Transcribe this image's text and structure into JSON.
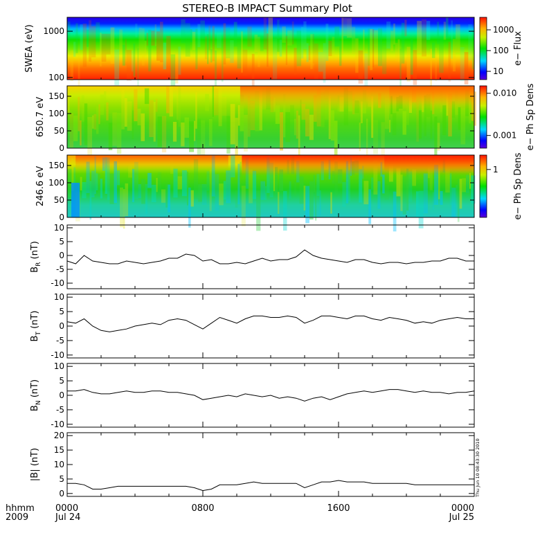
{
  "title": "STEREO-B IMPACT Summary Plot",
  "timestamp": "Thu Jun 10 08:43:30 2010",
  "xaxis": {
    "label_line1": "hhmm",
    "label_line2": "2009",
    "ticks": [
      {
        "hour": 0,
        "time": "0000",
        "date": "Jul 24"
      },
      {
        "hour": 8,
        "time": "0800",
        "date": ""
      },
      {
        "hour": 16,
        "time": "1600",
        "date": ""
      },
      {
        "hour": 24,
        "time": "0000",
        "date": "Jul 25"
      }
    ],
    "range_hours": [
      0,
      24
    ]
  },
  "chart_data": [
    {
      "type": "heatmap",
      "name": "swea",
      "ylabel": "SWEA (eV)",
      "yscale": "log",
      "ylim": [
        90,
        2000
      ],
      "yticks": [
        {
          "v": 100,
          "label": "100"
        },
        {
          "v": 1000,
          "label": "1000"
        }
      ],
      "colorbar": {
        "label": "e− Flux",
        "scale": "log",
        "range": [
          4,
          4000
        ],
        "ticks": [
          {
            "v": 10,
            "label": "10"
          },
          {
            "v": 100,
            "label": "100"
          },
          {
            "v": 1000,
            "label": "1000"
          }
        ]
      },
      "description_of_values": "flux increases toward lower energy; peak (red) below ~150 eV, blue above ~1500 eV"
    },
    {
      "type": "heatmap",
      "name": "pad_650",
      "ylabel": "650.7 eV",
      "ylim": [
        0,
        180
      ],
      "yticks": [
        {
          "v": 0,
          "label": "0"
        },
        {
          "v": 50,
          "label": "50"
        },
        {
          "v": 100,
          "label": "100"
        },
        {
          "v": 150,
          "label": "150"
        }
      ],
      "colorbar": {
        "label": "e− Ph Sp Dens",
        "scale": "log",
        "range": [
          0.0005,
          0.015
        ],
        "ticks": [
          {
            "v": 0.001,
            "label": "0.001"
          },
          {
            "v": 0.01,
            "label": "0.010"
          }
        ]
      }
    },
    {
      "type": "heatmap",
      "name": "pad_246",
      "ylabel": "246.6 eV",
      "ylim": [
        0,
        180
      ],
      "yticks": [
        {
          "v": 0,
          "label": "0"
        },
        {
          "v": 50,
          "label": "50"
        },
        {
          "v": 100,
          "label": "100"
        },
        {
          "v": 150,
          "label": "150"
        }
      ],
      "colorbar": {
        "label": "e− Ph Sp Dens",
        "scale": "log",
        "range": [
          0.1,
          2
        ],
        "ticks": [
          {
            "v": 1,
            "label": "1"
          }
        ]
      }
    },
    {
      "type": "line",
      "name": "br",
      "ylabel_main": "B",
      "ylabel_sub": "R",
      "ylabel_unit": "(nT)",
      "ylim": [
        -12,
        11
      ],
      "yticks": [
        -10,
        -5,
        0,
        5,
        10
      ],
      "x_hours": [
        0,
        0.5,
        1,
        1.5,
        2,
        2.5,
        3,
        3.5,
        4,
        4.5,
        5,
        5.5,
        6,
        6.5,
        7,
        7.5,
        8,
        8.5,
        9,
        9.5,
        10,
        10.5,
        11,
        11.5,
        12,
        12.5,
        13,
        13.5,
        14,
        14.5,
        15,
        15.5,
        16,
        16.5,
        17,
        17.5,
        18,
        18.5,
        19,
        19.5,
        20,
        20.5,
        21,
        21.5,
        22,
        22.5,
        23,
        23.5,
        24
      ],
      "y": [
        -2,
        -3,
        0,
        -2,
        -2.5,
        -3,
        -3,
        -2,
        -2.5,
        -3,
        -2.5,
        -2,
        -1,
        -1,
        0.5,
        0,
        -2,
        -1.5,
        -3,
        -3,
        -2.5,
        -3,
        -2,
        -1,
        -2,
        -1.5,
        -1.5,
        -0.5,
        2,
        0,
        -1,
        -1.5,
        -2,
        -2.5,
        -1.5,
        -1.5,
        -2.5,
        -3,
        -2.5,
        -2.5,
        -3,
        -2.5,
        -2.5,
        -2,
        -2,
        -1,
        -1,
        -2,
        -2
      ]
    },
    {
      "type": "line",
      "name": "bt",
      "ylabel_main": "B",
      "ylabel_sub": "T",
      "ylabel_unit": "(nT)",
      "ylim": [
        -11,
        11
      ],
      "yticks": [
        -10,
        -5,
        0,
        5,
        10
      ],
      "x_hours": [
        0,
        0.5,
        1,
        1.5,
        2,
        2.5,
        3,
        3.5,
        4,
        4.5,
        5,
        5.5,
        6,
        6.5,
        7,
        7.5,
        8,
        8.5,
        9,
        9.5,
        10,
        10.5,
        11,
        11.5,
        12,
        12.5,
        13,
        13.5,
        14,
        14.5,
        15,
        15.5,
        16,
        16.5,
        17,
        17.5,
        18,
        18.5,
        19,
        19.5,
        20,
        20.5,
        21,
        21.5,
        22,
        22.5,
        23,
        23.5,
        24
      ],
      "y": [
        1.5,
        1,
        2.5,
        0,
        -1.5,
        -2,
        -1.5,
        -1,
        0,
        0.5,
        1,
        0.5,
        2,
        2.5,
        2,
        0.5,
        -1,
        1,
        3,
        2,
        1,
        2.5,
        3.5,
        3.5,
        3,
        3,
        3.5,
        3,
        1,
        2,
        3.5,
        3.5,
        3,
        2.5,
        3.5,
        3.5,
        2.5,
        2,
        3,
        2.5,
        2,
        1,
        1.5,
        1,
        2,
        2.5,
        3,
        2.5,
        2.5
      ]
    },
    {
      "type": "line",
      "name": "bn",
      "ylabel_main": "B",
      "ylabel_sub": "N",
      "ylabel_unit": "(nT)",
      "ylim": [
        -11,
        11
      ],
      "yticks": [
        -10,
        -5,
        0,
        5,
        10
      ],
      "x_hours": [
        0,
        0.5,
        1,
        1.5,
        2,
        2.5,
        3,
        3.5,
        4,
        4.5,
        5,
        5.5,
        6,
        6.5,
        7,
        7.5,
        8,
        8.5,
        9,
        9.5,
        10,
        10.5,
        11,
        11.5,
        12,
        12.5,
        13,
        13.5,
        14,
        14.5,
        15,
        15.5,
        16,
        16.5,
        17,
        17.5,
        18,
        18.5,
        19,
        19.5,
        20,
        20.5,
        21,
        21.5,
        22,
        22.5,
        23,
        23.5,
        24
      ],
      "y": [
        1.5,
        1.5,
        2,
        1,
        0.5,
        0.5,
        1,
        1.5,
        1,
        1,
        1.5,
        1.5,
        1,
        1,
        0.5,
        0,
        -1.5,
        -1,
        -0.5,
        0,
        -0.5,
        0.5,
        0,
        -0.5,
        0,
        -1,
        -0.5,
        -1,
        -2,
        -1,
        -0.5,
        -1.5,
        -0.5,
        0.5,
        1,
        1.5,
        1,
        1.5,
        2,
        2,
        1.5,
        1,
        1.5,
        1,
        1,
        0.5,
        1,
        1,
        1.5
      ]
    },
    {
      "type": "line",
      "name": "bmag",
      "ylabel_main": "|B|",
      "ylabel_sub": "",
      "ylabel_unit": "(nT)",
      "ylim": [
        -1,
        21
      ],
      "yticks": [
        0,
        5,
        10,
        15,
        20
      ],
      "x_hours": [
        0,
        0.5,
        1,
        1.5,
        2,
        2.5,
        3,
        3.5,
        4,
        4.5,
        5,
        5.5,
        6,
        6.5,
        7,
        7.5,
        8,
        8.5,
        9,
        9.5,
        10,
        10.5,
        11,
        11.5,
        12,
        12.5,
        13,
        13.5,
        14,
        14.5,
        15,
        15.5,
        16,
        16.5,
        17,
        17.5,
        18,
        18.5,
        19,
        19.5,
        20,
        20.5,
        21,
        21.5,
        22,
        22.5,
        23,
        23.5,
        24
      ],
      "y": [
        3.5,
        3.5,
        3,
        1.5,
        1.5,
        2,
        2.5,
        2.5,
        2.5,
        2.5,
        2.5,
        2.5,
        2.5,
        2.5,
        2.5,
        2,
        1,
        1.5,
        3,
        3,
        3,
        3.5,
        4,
        3.5,
        3.5,
        3.5,
        3.5,
        3.5,
        2,
        3,
        4,
        4,
        4.5,
        4,
        4,
        4,
        3.5,
        3.5,
        3.5,
        3.5,
        3.5,
        3,
        3,
        3,
        3,
        3,
        3,
        3,
        3
      ]
    }
  ]
}
